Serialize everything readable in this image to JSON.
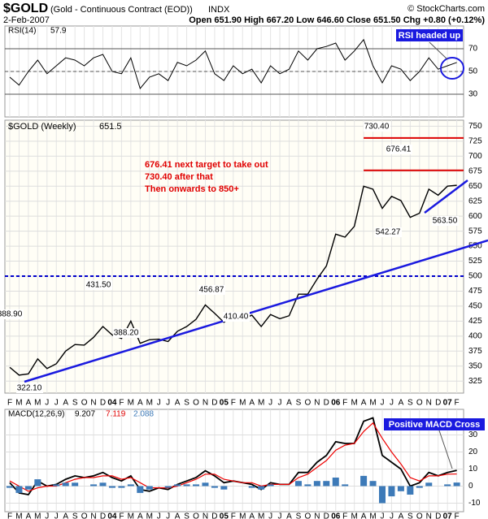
{
  "header": {
    "symbol": "$GOLD",
    "name": "(Gold - Continuous Contract (EOD))",
    "exchange": "INDX",
    "copyright": "© StockCharts.com",
    "date": "2-Feb-2007",
    "quote": "Open 651.90 High 667.20 Low 646.60 Close 651.50 Chg +0.80 (+0.12%)"
  },
  "chart_data": [
    {
      "type": "line",
      "legend": "RSI(14)",
      "legend_value": 57.9,
      "color": "#000000",
      "fill_color": "#4a7a2a",
      "categories": [
        "F",
        "M",
        "A",
        "M",
        "J",
        "J",
        "A",
        "S",
        "O",
        "N",
        "D",
        "04",
        "F",
        "M",
        "A",
        "M",
        "J",
        "J",
        "A",
        "S",
        "O",
        "N",
        "D",
        "05",
        "F",
        "M",
        "A",
        "M",
        "J",
        "J",
        "A",
        "S",
        "O",
        "N",
        "D",
        "06",
        "F",
        "M",
        "A",
        "M",
        "J",
        "J",
        "A",
        "S",
        "O",
        "N",
        "D",
        "07",
        "F"
      ],
      "values": [
        45,
        38,
        50,
        60,
        48,
        55,
        62,
        60,
        55,
        62,
        65,
        50,
        48,
        62,
        35,
        45,
        48,
        42,
        58,
        55,
        60,
        68,
        48,
        42,
        55,
        48,
        52,
        40,
        55,
        48,
        52,
        68,
        60,
        70,
        72,
        75,
        60,
        68,
        78,
        55,
        40,
        55,
        52,
        42,
        50,
        62,
        52,
        55,
        57.9
      ],
      "ylim": [
        10,
        90
      ],
      "yticks": [
        30,
        50,
        70
      ],
      "annotation": "RSI headed up"
    },
    {
      "type": "line",
      "legend": "$GOLD (Weekly)",
      "legend_value": 651.5,
      "color": "#000000",
      "values": [
        348,
        335,
        337,
        362,
        346,
        354,
        375,
        386,
        385,
        398,
        416,
        402,
        396,
        425,
        388,
        394,
        395,
        391,
        408,
        416,
        428,
        452,
        438,
        423,
        436,
        428,
        435,
        416,
        436,
        429,
        434,
        470,
        470,
        495,
        517,
        570,
        565,
        583,
        650,
        645,
        613,
        633,
        626,
        598,
        605,
        645,
        635,
        650,
        651.5
      ],
      "ylim": [
        305,
        760
      ],
      "yticks": [
        325,
        350,
        375,
        400,
        425,
        450,
        475,
        500,
        525,
        550,
        575,
        600,
        625,
        650,
        675,
        700,
        725,
        750
      ],
      "price_labels": [
        {
          "value": 388.9,
          "label": "388.90"
        },
        {
          "value": 322.1,
          "label": "322.10"
        },
        {
          "value": 431.5,
          "label": "431.50"
        },
        {
          "value": 388.2,
          "label": "388.20"
        },
        {
          "value": 456.87,
          "label": "456.87"
        },
        {
          "value": 410.4,
          "label": "410.40"
        },
        {
          "value": 730.4,
          "label": "730.40"
        },
        {
          "value": 676.41,
          "label": "676.41"
        },
        {
          "value": 542.27,
          "label": "542.27"
        },
        {
          "value": 563.5,
          "label": "563.50"
        }
      ],
      "hlines": [
        {
          "value": 500,
          "color": "#0000cc",
          "dashed": true
        },
        {
          "value": 730.4,
          "color": "#dd0000",
          "dashed": false
        },
        {
          "value": 676.41,
          "color": "#dd0000",
          "dashed": false
        }
      ],
      "notes": [
        "676.41 next target to take out",
        "730.40 after that",
        "Then onwards to 850+"
      ]
    },
    {
      "type": "macd",
      "legend": "MACD(12,26,9)",
      "annotation": "Positive MACD Cross",
      "series": [
        {
          "name": "MACD",
          "color": "#000000",
          "values": [
            2,
            -4,
            -5,
            3,
            0,
            1,
            4,
            6,
            5,
            6,
            8,
            5,
            3,
            6,
            -2,
            -3,
            -1,
            -2,
            1,
            3,
            5,
            9,
            6,
            2,
            3,
            2,
            1,
            -2,
            2,
            1,
            1,
            8,
            8,
            14,
            18,
            26,
            25,
            25,
            38,
            40,
            18,
            14,
            10,
            0,
            2,
            8,
            6,
            8,
            9.207
          ]
        },
        {
          "name": "Signal",
          "color": "#ee0000",
          "values": [
            3,
            0,
            -3,
            -1,
            0,
            0,
            2,
            4,
            5,
            5,
            6,
            6,
            4,
            5,
            2,
            -1,
            -1,
            -1,
            0,
            2,
            4,
            7,
            7,
            4,
            3,
            2,
            2,
            0,
            1,
            1,
            1,
            5,
            7,
            11,
            15,
            21,
            24,
            25,
            32,
            37,
            28,
            20,
            13,
            5,
            3,
            6,
            6,
            7,
            7.119
          ]
        },
        {
          "name": "Histogram",
          "color": "#3d7ab8",
          "values": [
            -1,
            -4,
            -2,
            4,
            0,
            1,
            2,
            2,
            0,
            1,
            2,
            -1,
            -1,
            1,
            -4,
            -2,
            0,
            -1,
            1,
            1,
            1,
            2,
            -1,
            -2,
            0,
            0,
            -1,
            -2,
            1,
            0,
            0,
            3,
            1,
            3,
            3,
            5,
            1,
            0,
            6,
            3,
            -10,
            -6,
            -3,
            -5,
            -1,
            2,
            0,
            1,
            2.088
          ]
        }
      ],
      "ylim": [
        -15,
        45
      ],
      "yticks": [
        -10,
        0,
        10,
        20,
        30
      ]
    }
  ]
}
